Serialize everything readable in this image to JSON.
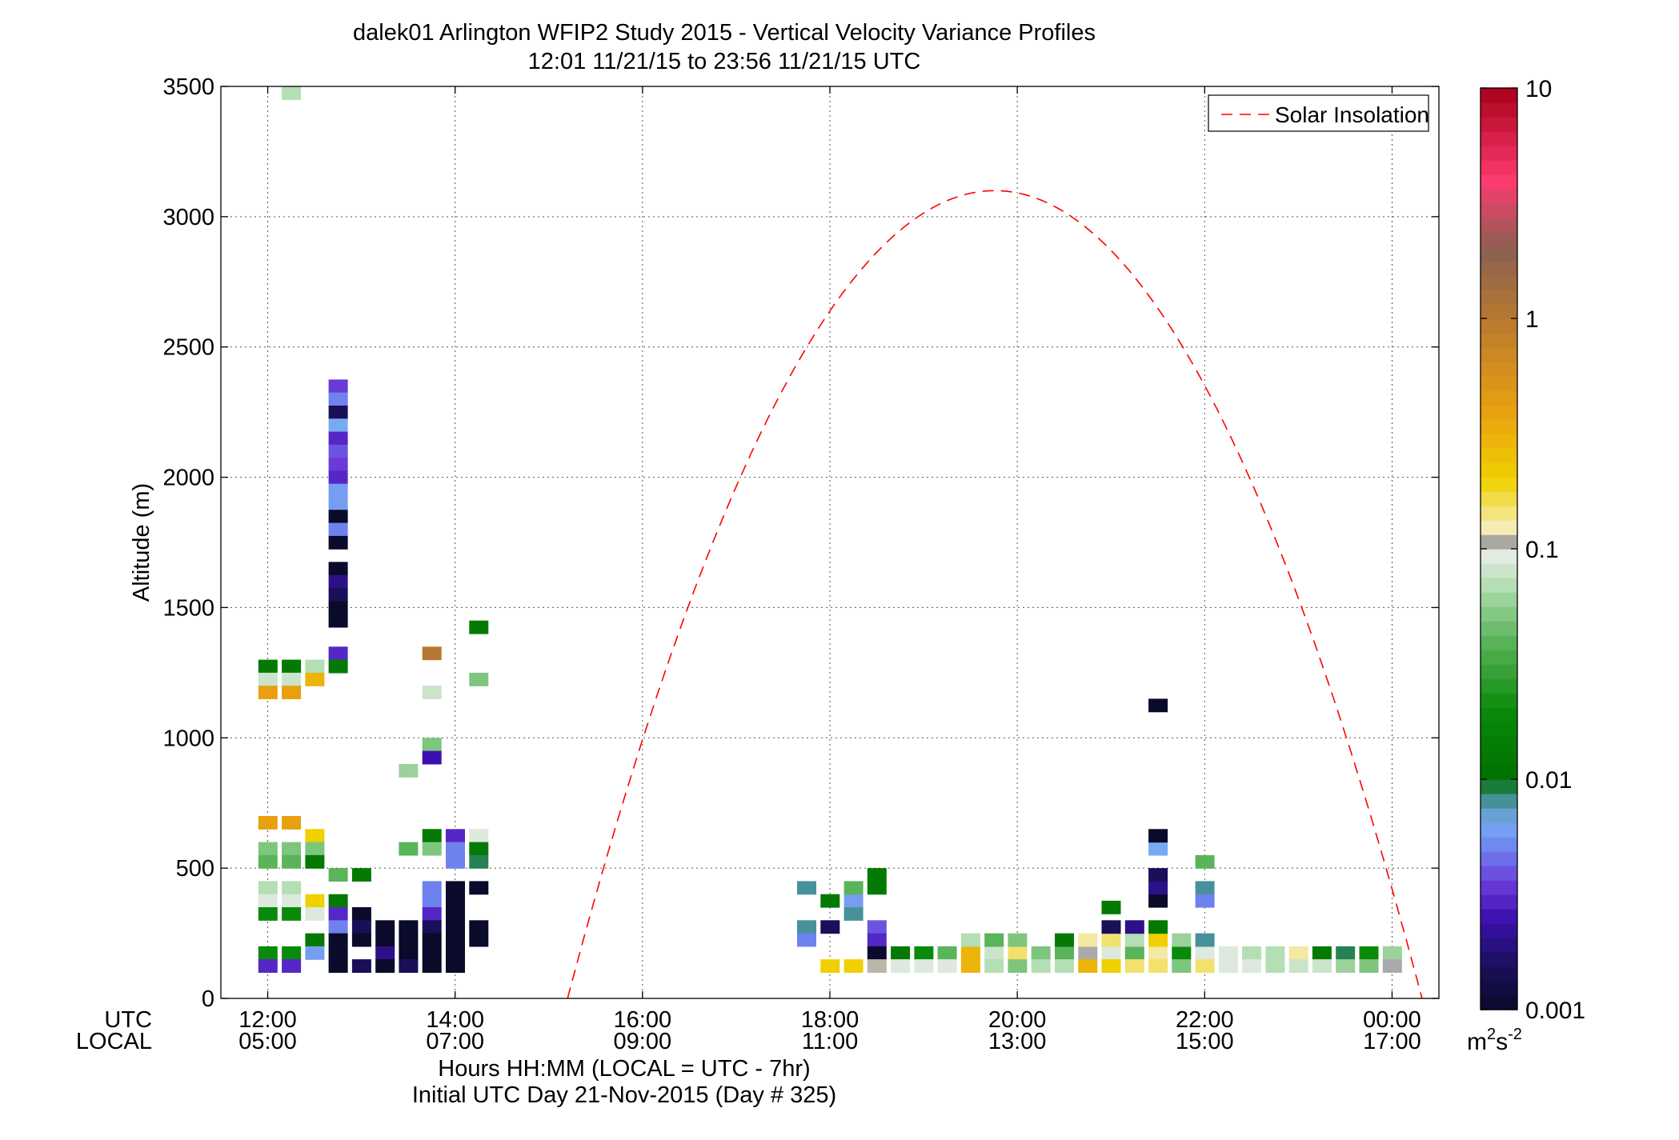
{
  "chart_data": {
    "type": "heatmap",
    "title_line1": "dalek01 Arlington WFIP2 Study 2015 - Vertical Velocity Variance Profiles",
    "title_line2": "12:01 11/21/15 to 23:56 11/21/15  UTC",
    "ylabel": "Altitude (m)",
    "xlabel_line1": "Hours HH:MM  (LOCAL = UTC - 7hr)",
    "xlabel_line2": "Initial UTC Day 21-Nov-2015 (Day # 325)",
    "x_row_labels": [
      "UTC",
      "LOCAL"
    ],
    "x_unit": "hours UTC",
    "xlim": [
      11.5,
      24.5
    ],
    "ylim": [
      0,
      3500
    ],
    "grid": true,
    "x_ticks": [
      {
        "value": 12,
        "utc": "12:00",
        "local": "05:00"
      },
      {
        "value": 14,
        "utc": "14:00",
        "local": "07:00"
      },
      {
        "value": 16,
        "utc": "16:00",
        "local": "09:00"
      },
      {
        "value": 18,
        "utc": "18:00",
        "local": "11:00"
      },
      {
        "value": 20,
        "utc": "20:00",
        "local": "13:00"
      },
      {
        "value": 22,
        "utc": "22:00",
        "local": "15:00"
      },
      {
        "value": 24,
        "utc": "00:00",
        "local": "17:00"
      }
    ],
    "y_ticks": [
      {
        "value": 0,
        "label": "0"
      },
      {
        "value": 500,
        "label": "500"
      },
      {
        "value": 1000,
        "label": "1000"
      },
      {
        "value": 1500,
        "label": "1500"
      },
      {
        "value": 2000,
        "label": "2000"
      },
      {
        "value": 2500,
        "label": "2500"
      },
      {
        "value": 3000,
        "label": "3000"
      },
      {
        "value": 3500,
        "label": "3500"
      }
    ],
    "legend": {
      "position": "top-right",
      "label": "Solar Insolation",
      "color": "#ff0000",
      "style": "dashed"
    },
    "solar_curve": {
      "start_hour": 15.2,
      "end_hour": 24.32,
      "peak_hour": 19.76,
      "peak_altitude": 3100
    },
    "colorbar": {
      "scale": "log",
      "range": [
        0.001,
        10
      ],
      "unit_base": "m",
      "unit_exp1": "2",
      "unit_mid": "s",
      "unit_exp2": "-2",
      "ticks": [
        {
          "value": 0.001,
          "label": "0.001"
        },
        {
          "value": 0.01,
          "label": "0.01"
        },
        {
          "value": 0.1,
          "label": "0.1"
        },
        {
          "value": 1,
          "label": "1"
        },
        {
          "value": 10,
          "label": "10"
        }
      ],
      "stops": [
        {
          "v": 0.001,
          "c": "#0a0a2a"
        },
        {
          "v": 0.0016,
          "c": "#1c1060"
        },
        {
          "v": 0.0025,
          "c": "#3c10b0"
        },
        {
          "v": 0.0035,
          "c": "#6a3ad8"
        },
        {
          "v": 0.005,
          "c": "#6e82ee"
        },
        {
          "v": 0.0065,
          "c": "#78aaf2"
        },
        {
          "v": 0.0085,
          "c": "#3a8a82"
        },
        {
          "v": 0.01,
          "c": "#007000"
        },
        {
          "v": 0.02,
          "c": "#0a8a0a"
        },
        {
          "v": 0.04,
          "c": "#5ab45a"
        },
        {
          "v": 0.07,
          "c": "#b4deb4"
        },
        {
          "v": 0.1,
          "c": "#eeeeee"
        },
        {
          "v": 0.105,
          "c": "#9a9a9a"
        },
        {
          "v": 0.12,
          "c": "#f4eec0"
        },
        {
          "v": 0.2,
          "c": "#f0d000"
        },
        {
          "v": 0.4,
          "c": "#e8a010"
        },
        {
          "v": 1,
          "c": "#b87830"
        },
        {
          "v": 2,
          "c": "#8a6050"
        },
        {
          "v": 4,
          "c": "#ff3a70"
        },
        {
          "v": 10,
          "c": "#a8001a"
        }
      ]
    },
    "cell_width_hours": 0.2,
    "cell_height_m": 50,
    "cells": [
      {
        "x": 12.25,
        "y": 3475,
        "v": 0.07
      },
      {
        "x": 12.75,
        "y": 2350,
        "v": 0.0035
      },
      {
        "x": 12.75,
        "y": 2300,
        "v": 0.005
      },
      {
        "x": 12.75,
        "y": 2250,
        "v": 0.0015
      },
      {
        "x": 12.75,
        "y": 2200,
        "v": 0.0065
      },
      {
        "x": 12.75,
        "y": 2150,
        "v": 0.003
      },
      {
        "x": 12.75,
        "y": 2100,
        "v": 0.004
      },
      {
        "x": 12.75,
        "y": 2050,
        "v": 0.0035
      },
      {
        "x": 12.75,
        "y": 2000,
        "v": 0.003
      },
      {
        "x": 12.75,
        "y": 1950,
        "v": 0.006
      },
      {
        "x": 12.75,
        "y": 1900,
        "v": 0.006
      },
      {
        "x": 12.75,
        "y": 1850,
        "v": 0.001
      },
      {
        "x": 12.75,
        "y": 1800,
        "v": 0.005
      },
      {
        "x": 12.75,
        "y": 1750,
        "v": 0.001
      },
      {
        "x": 12.75,
        "y": 1650,
        "v": 0.001
      },
      {
        "x": 12.75,
        "y": 1600,
        "v": 0.002
      },
      {
        "x": 12.75,
        "y": 1550,
        "v": 0.0015
      },
      {
        "x": 12.75,
        "y": 1500,
        "v": 0.001
      },
      {
        "x": 12.75,
        "y": 1450,
        "v": 0.001
      },
      {
        "x": 12.75,
        "y": 1325,
        "v": 0.003
      },
      {
        "x": 12.75,
        "y": 1275,
        "v": 0.013
      },
      {
        "x": 12.5,
        "y": 1275,
        "v": 0.07
      },
      {
        "x": 12.0,
        "y": 1275,
        "v": 0.013
      },
      {
        "x": 12.25,
        "y": 1275,
        "v": 0.013
      },
      {
        "x": 12.0,
        "y": 1225,
        "v": 0.08
      },
      {
        "x": 12.25,
        "y": 1225,
        "v": 0.08
      },
      {
        "x": 12.5,
        "y": 1225,
        "v": 0.3
      },
      {
        "x": 12.0,
        "y": 1175,
        "v": 0.4
      },
      {
        "x": 12.25,
        "y": 1175,
        "v": 0.4
      },
      {
        "x": 14.25,
        "y": 1425,
        "v": 0.013
      },
      {
        "x": 13.75,
        "y": 1325,
        "v": 1.0
      },
      {
        "x": 14.25,
        "y": 1225,
        "v": 0.05
      },
      {
        "x": 13.75,
        "y": 1175,
        "v": 0.08
      },
      {
        "x": 13.75,
        "y": 975,
        "v": 0.05
      },
      {
        "x": 13.75,
        "y": 925,
        "v": 0.0025
      },
      {
        "x": 13.5,
        "y": 875,
        "v": 0.06
      },
      {
        "x": 12.0,
        "y": 675,
        "v": 0.4
      },
      {
        "x": 12.25,
        "y": 675,
        "v": 0.4
      },
      {
        "x": 12.5,
        "y": 625,
        "v": 0.2
      },
      {
        "x": 12.0,
        "y": 575,
        "v": 0.05
      },
      {
        "x": 12.25,
        "y": 575,
        "v": 0.05
      },
      {
        "x": 12.5,
        "y": 575,
        "v": 0.05
      },
      {
        "x": 12.0,
        "y": 525,
        "v": 0.04
      },
      {
        "x": 12.25,
        "y": 525,
        "v": 0.04
      },
      {
        "x": 12.5,
        "y": 525,
        "v": 0.013
      },
      {
        "x": 13.5,
        "y": 575,
        "v": 0.04
      },
      {
        "x": 13.75,
        "y": 625,
        "v": 0.013
      },
      {
        "x": 13.75,
        "y": 575,
        "v": 0.05
      },
      {
        "x": 14.0,
        "y": 625,
        "v": 0.003
      },
      {
        "x": 14.25,
        "y": 625,
        "v": 0.09
      },
      {
        "x": 14.0,
        "y": 575,
        "v": 0.005
      },
      {
        "x": 14.25,
        "y": 575,
        "v": 0.013
      },
      {
        "x": 14.0,
        "y": 525,
        "v": 0.005
      },
      {
        "x": 14.25,
        "y": 525,
        "v": 0.009
      },
      {
        "x": 12.75,
        "y": 475,
        "v": 0.04
      },
      {
        "x": 13.0,
        "y": 475,
        "v": 0.013
      },
      {
        "x": 12.0,
        "y": 425,
        "v": 0.07
      },
      {
        "x": 12.25,
        "y": 425,
        "v": 0.07
      },
      {
        "x": 12.0,
        "y": 375,
        "v": 0.09
      },
      {
        "x": 12.25,
        "y": 375,
        "v": 0.09
      },
      {
        "x": 12.5,
        "y": 375,
        "v": 0.2
      },
      {
        "x": 12.75,
        "y": 375,
        "v": 0.013
      },
      {
        "x": 12.0,
        "y": 325,
        "v": 0.02
      },
      {
        "x": 12.25,
        "y": 325,
        "v": 0.02
      },
      {
        "x": 12.5,
        "y": 325,
        "v": 0.09
      },
      {
        "x": 12.75,
        "y": 325,
        "v": 0.003
      },
      {
        "x": 13.0,
        "y": 325,
        "v": 0.001
      },
      {
        "x": 12.75,
        "y": 275,
        "v": 0.005
      },
      {
        "x": 13.0,
        "y": 275,
        "v": 0.0015
      },
      {
        "x": 13.25,
        "y": 275,
        "v": 0.001
      },
      {
        "x": 13.5,
        "y": 275,
        "v": 0.001
      },
      {
        "x": 12.5,
        "y": 225,
        "v": 0.013
      },
      {
        "x": 12.75,
        "y": 225,
        "v": 0.001
      },
      {
        "x": 13.0,
        "y": 225,
        "v": 0.001
      },
      {
        "x": 13.25,
        "y": 225,
        "v": 0.001
      },
      {
        "x": 13.5,
        "y": 225,
        "v": 0.001
      },
      {
        "x": 12.0,
        "y": 175,
        "v": 0.02
      },
      {
        "x": 12.25,
        "y": 175,
        "v": 0.02
      },
      {
        "x": 12.5,
        "y": 175,
        "v": 0.006
      },
      {
        "x": 12.75,
        "y": 175,
        "v": 0.001
      },
      {
        "x": 13.25,
        "y": 175,
        "v": 0.002
      },
      {
        "x": 13.5,
        "y": 175,
        "v": 0.001
      },
      {
        "x": 12.0,
        "y": 125,
        "v": 0.003
      },
      {
        "x": 12.25,
        "y": 125,
        "v": 0.003
      },
      {
        "x": 12.75,
        "y": 125,
        "v": 0.001
      },
      {
        "x": 13.0,
        "y": 125,
        "v": 0.0015
      },
      {
        "x": 13.25,
        "y": 125,
        "v": 0.001
      },
      {
        "x": 13.5,
        "y": 125,
        "v": 0.0015
      },
      {
        "x": 13.75,
        "y": 425,
        "v": 0.005
      },
      {
        "x": 14.0,
        "y": 425,
        "v": 0.001
      },
      {
        "x": 14.25,
        "y": 425,
        "v": 0.001
      },
      {
        "x": 13.75,
        "y": 375,
        "v": 0.005
      },
      {
        "x": 14.0,
        "y": 375,
        "v": 0.001
      },
      {
        "x": 13.75,
        "y": 325,
        "v": 0.003
      },
      {
        "x": 14.0,
        "y": 325,
        "v": 0.001
      },
      {
        "x": 13.75,
        "y": 275,
        "v": 0.0015
      },
      {
        "x": 14.0,
        "y": 275,
        "v": 0.001
      },
      {
        "x": 14.25,
        "y": 275,
        "v": 0.001
      },
      {
        "x": 13.75,
        "y": 225,
        "v": 0.001
      },
      {
        "x": 14.0,
        "y": 225,
        "v": 0.001
      },
      {
        "x": 14.25,
        "y": 225,
        "v": 0.001
      },
      {
        "x": 13.75,
        "y": 175,
        "v": 0.001
      },
      {
        "x": 14.0,
        "y": 175,
        "v": 0.001
      },
      {
        "x": 13.75,
        "y": 125,
        "v": 0.001
      },
      {
        "x": 14.0,
        "y": 125,
        "v": 0.001
      },
      {
        "x": 17.75,
        "y": 425,
        "v": 0.008
      },
      {
        "x": 18.0,
        "y": 375,
        "v": 0.013
      },
      {
        "x": 18.25,
        "y": 375,
        "v": 0.006
      },
      {
        "x": 18.25,
        "y": 425,
        "v": 0.04
      },
      {
        "x": 18.5,
        "y": 475,
        "v": 0.013
      },
      {
        "x": 18.5,
        "y": 425,
        "v": 0.013
      },
      {
        "x": 18.25,
        "y": 325,
        "v": 0.008
      },
      {
        "x": 17.75,
        "y": 275,
        "v": 0.008
      },
      {
        "x": 18.0,
        "y": 275,
        "v": 0.0015
      },
      {
        "x": 17.75,
        "y": 225,
        "v": 0.005
      },
      {
        "x": 18.5,
        "y": 275,
        "v": 0.004
      },
      {
        "x": 18.5,
        "y": 225,
        "v": 0.003
      },
      {
        "x": 18.5,
        "y": 175,
        "v": 0.001
      },
      {
        "x": 18.75,
        "y": 175,
        "v": 0.013
      },
      {
        "x": 19.0,
        "y": 175,
        "v": 0.02
      },
      {
        "x": 19.25,
        "y": 175,
        "v": 0.04
      },
      {
        "x": 19.5,
        "y": 175,
        "v": 0.3
      },
      {
        "x": 19.75,
        "y": 175,
        "v": 0.08
      },
      {
        "x": 20.0,
        "y": 175,
        "v": 0.15
      },
      {
        "x": 20.25,
        "y": 175,
        "v": 0.05
      },
      {
        "x": 20.5,
        "y": 175,
        "v": 0.04
      },
      {
        "x": 20.75,
        "y": 175,
        "v": 0.104
      },
      {
        "x": 21.0,
        "y": 175,
        "v": 0.09
      },
      {
        "x": 21.25,
        "y": 175,
        "v": 0.04
      },
      {
        "x": 21.5,
        "y": 175,
        "v": 0.13
      },
      {
        "x": 21.75,
        "y": 175,
        "v": 0.02
      },
      {
        "x": 22.0,
        "y": 175,
        "v": 0.09
      },
      {
        "x": 22.25,
        "y": 175,
        "v": 0.09
      },
      {
        "x": 22.5,
        "y": 175,
        "v": 0.07
      },
      {
        "x": 22.75,
        "y": 175,
        "v": 0.07
      },
      {
        "x": 23.0,
        "y": 175,
        "v": 0.13
      },
      {
        "x": 23.25,
        "y": 175,
        "v": 0.013
      },
      {
        "x": 23.5,
        "y": 175,
        "v": 0.009
      },
      {
        "x": 23.75,
        "y": 175,
        "v": 0.02
      },
      {
        "x": 24.0,
        "y": 175,
        "v": 0.06
      },
      {
        "x": 19.5,
        "y": 225,
        "v": 0.07
      },
      {
        "x": 19.75,
        "y": 225,
        "v": 0.04
      },
      {
        "x": 20.0,
        "y": 225,
        "v": 0.05
      },
      {
        "x": 20.5,
        "y": 225,
        "v": 0.013
      },
      {
        "x": 20.75,
        "y": 225,
        "v": 0.13
      },
      {
        "x": 21.0,
        "y": 225,
        "v": 0.15
      },
      {
        "x": 21.25,
        "y": 225,
        "v": 0.07
      },
      {
        "x": 21.5,
        "y": 225,
        "v": 0.2
      },
      {
        "x": 21.75,
        "y": 225,
        "v": 0.06
      },
      {
        "x": 22.0,
        "y": 225,
        "v": 0.008
      },
      {
        "x": 21.0,
        "y": 275,
        "v": 0.0015
      },
      {
        "x": 21.25,
        "y": 275,
        "v": 0.002
      },
      {
        "x": 21.5,
        "y": 275,
        "v": 0.013
      },
      {
        "x": 21.0,
        "y": 350,
        "v": 0.013
      },
      {
        "x": 21.5,
        "y": 375,
        "v": 0.001
      },
      {
        "x": 21.5,
        "y": 425,
        "v": 0.002
      },
      {
        "x": 21.5,
        "y": 475,
        "v": 0.0015
      },
      {
        "x": 21.5,
        "y": 575,
        "v": 0.0065
      },
      {
        "x": 21.5,
        "y": 625,
        "v": 0.001
      },
      {
        "x": 22.0,
        "y": 525,
        "v": 0.04
      },
      {
        "x": 22.0,
        "y": 425,
        "v": 0.008
      },
      {
        "x": 22.0,
        "y": 375,
        "v": 0.005
      },
      {
        "x": 21.5,
        "y": 1125,
        "v": 0.001
      },
      {
        "x": 18.0,
        "y": 125,
        "v": 0.2
      },
      {
        "x": 18.25,
        "y": 125,
        "v": 0.2
      },
      {
        "x": 18.5,
        "y": 125,
        "v": 0.11
      },
      {
        "x": 18.75,
        "y": 125,
        "v": 0.09
      },
      {
        "x": 19.0,
        "y": 125,
        "v": 0.09
      },
      {
        "x": 19.25,
        "y": 125,
        "v": 0.09
      },
      {
        "x": 19.5,
        "y": 125,
        "v": 0.3
      },
      {
        "x": 19.75,
        "y": 125,
        "v": 0.07
      },
      {
        "x": 20.0,
        "y": 125,
        "v": 0.05
      },
      {
        "x": 20.25,
        "y": 125,
        "v": 0.07
      },
      {
        "x": 20.5,
        "y": 125,
        "v": 0.07
      },
      {
        "x": 20.75,
        "y": 125,
        "v": 0.3
      },
      {
        "x": 21.0,
        "y": 125,
        "v": 0.2
      },
      {
        "x": 21.25,
        "y": 125,
        "v": 0.15
      },
      {
        "x": 21.5,
        "y": 125,
        "v": 0.15
      },
      {
        "x": 21.75,
        "y": 125,
        "v": 0.05
      },
      {
        "x": 22.0,
        "y": 125,
        "v": 0.15
      },
      {
        "x": 22.25,
        "y": 125,
        "v": 0.09
      },
      {
        "x": 22.5,
        "y": 125,
        "v": 0.09
      },
      {
        "x": 22.75,
        "y": 125,
        "v": 0.07
      },
      {
        "x": 23.0,
        "y": 125,
        "v": 0.08
      },
      {
        "x": 23.25,
        "y": 125,
        "v": 0.08
      },
      {
        "x": 23.5,
        "y": 125,
        "v": 0.06
      },
      {
        "x": 23.75,
        "y": 125,
        "v": 0.05
      },
      {
        "x": 24.0,
        "y": 125,
        "v": 0.104
      }
    ]
  }
}
